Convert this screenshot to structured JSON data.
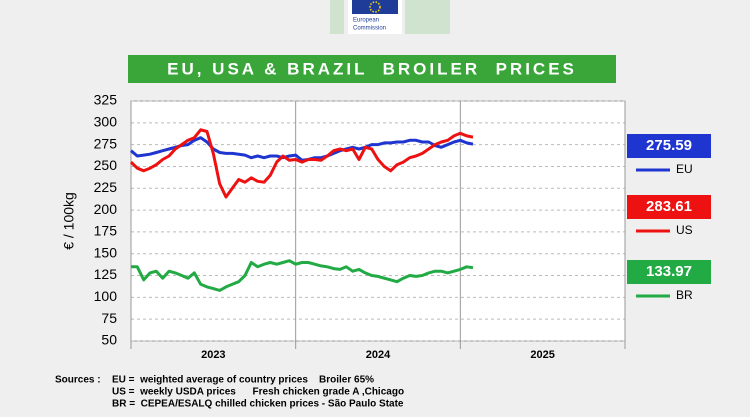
{
  "header": {
    "logo_text": [
      "European",
      "Commission"
    ]
  },
  "chart_data": {
    "type": "line",
    "title": "EU, USA & BRAZIL  BROILER  PRICES",
    "y_label": "€ / 100kg",
    "x_labels": [
      "2023",
      "2024",
      "2025"
    ],
    "xlim": [
      0,
      156
    ],
    "x": [
      0,
      2,
      4,
      6,
      8,
      10,
      12,
      14,
      16,
      18,
      20,
      22,
      24,
      26,
      28,
      30,
      32,
      34,
      36,
      38,
      40,
      42,
      44,
      46,
      48,
      50,
      52,
      54,
      56,
      58,
      60,
      62,
      64,
      66,
      68,
      70,
      72,
      74,
      76,
      78,
      80,
      82,
      84,
      86,
      88,
      90,
      92,
      94,
      96,
      98,
      100,
      102,
      104,
      106,
      108
    ],
    "ylim": [
      50,
      325
    ],
    "yticks": [
      50,
      75,
      100,
      125,
      150,
      175,
      200,
      225,
      250,
      275,
      300,
      325
    ],
    "grid": true,
    "series": [
      {
        "name": "EU",
        "color": "#1f35d0",
        "values": [
          268,
          262,
          263,
          264,
          266,
          268,
          270,
          272,
          274,
          275,
          280,
          283,
          278,
          270,
          266,
          265,
          265,
          264,
          263,
          260,
          262,
          260,
          262,
          262,
          260,
          262,
          263,
          257,
          258,
          260,
          260,
          262,
          265,
          268,
          270,
          272,
          270,
          272,
          275,
          275,
          277,
          277,
          278,
          278,
          280,
          280,
          278,
          278,
          274,
          272,
          275,
          278,
          280,
          277,
          275.59
        ]
      },
      {
        "name": "US",
        "color": "#ee1111",
        "values": [
          255,
          248,
          245,
          248,
          252,
          258,
          262,
          270,
          275,
          280,
          283,
          292,
          290,
          265,
          230,
          215,
          225,
          235,
          232,
          237,
          233,
          232,
          240,
          255,
          262,
          257,
          258,
          255,
          258,
          258,
          257,
          262,
          268,
          270,
          268,
          270,
          258,
          272,
          270,
          258,
          250,
          245,
          252,
          255,
          260,
          262,
          265,
          270,
          275,
          278,
          280,
          285,
          288,
          285,
          283.61
        ]
      },
      {
        "name": "BR",
        "color": "#22aa44",
        "values": [
          135,
          135,
          120,
          128,
          130,
          122,
          130,
          128,
          125,
          122,
          128,
          115,
          112,
          110,
          108,
          112,
          115,
          118,
          125,
          140,
          135,
          138,
          140,
          138,
          140,
          142,
          138,
          140,
          140,
          138,
          136,
          135,
          133,
          132,
          135,
          130,
          132,
          128,
          125,
          124,
          122,
          120,
          118,
          122,
          125,
          124,
          125,
          128,
          130,
          130,
          128,
          130,
          132,
          135,
          133.97
        ]
      }
    ],
    "sources_label": "Sources :",
    "sources": [
      "EU =  weighted average of country prices    Broiler 65%",
      "US =  weekly USDA prices      Fresh chicken grade A ,Chicago",
      "BR =  CEPEA/ESALQ chilled chicken prices - São Paulo State"
    ]
  }
}
